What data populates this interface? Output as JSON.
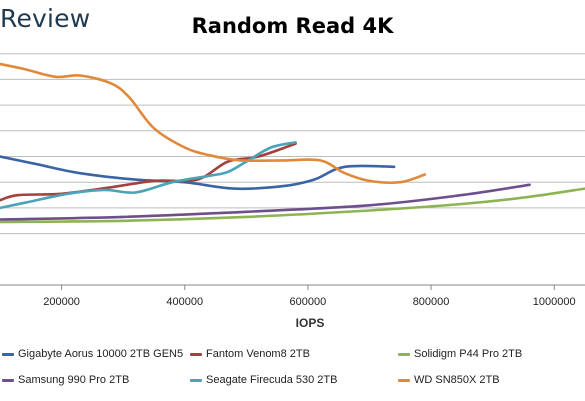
{
  "header": {
    "brand": "Review"
  },
  "chart_data": {
    "type": "line",
    "title": "Random Read 4K",
    "xlabel": "IOPS",
    "ylabel": "",
    "xlim": [
      100000,
      1050000
    ],
    "ylim": [
      0,
      10
    ],
    "x_ticks": [
      200000,
      400000,
      600000,
      800000,
      1000000
    ],
    "y_gridlines": [
      2,
      3,
      4,
      5,
      6,
      7,
      8,
      9
    ],
    "y_tick_labels_visible": false,
    "grid": true,
    "legend_position": "bottom",
    "series": [
      {
        "name": "Gigabyte Aorus 10000 2TB GEN5",
        "color": "#3a64a3",
        "points": [
          [
            100000,
            5.0
          ],
          [
            160000,
            4.7
          ],
          [
            230000,
            4.35
          ],
          [
            320000,
            4.1
          ],
          [
            400000,
            4.0
          ],
          [
            480000,
            3.75
          ],
          [
            560000,
            3.85
          ],
          [
            610000,
            4.1
          ],
          [
            660000,
            4.6
          ],
          [
            740000,
            4.6
          ]
        ]
      },
      {
        "name": "Fantom Venom8 2TB",
        "color": "#a3413f",
        "points": [
          [
            100000,
            3.3
          ],
          [
            130000,
            3.5
          ],
          [
            200000,
            3.55
          ],
          [
            280000,
            3.8
          ],
          [
            350000,
            4.05
          ],
          [
            420000,
            4.1
          ],
          [
            470000,
            4.8
          ],
          [
            520000,
            5.0
          ],
          [
            580000,
            5.5
          ]
        ]
      },
      {
        "name": "Solidigm P44 Pro 2TB",
        "color": "#8db454",
        "points": [
          [
            100000,
            2.45
          ],
          [
            300000,
            2.5
          ],
          [
            500000,
            2.65
          ],
          [
            700000,
            2.9
          ],
          [
            850000,
            3.15
          ],
          [
            950000,
            3.4
          ],
          [
            1050000,
            3.75
          ]
        ]
      },
      {
        "name": "Samsung 990 Pro 2TB",
        "color": "#6e4f8e",
        "points": [
          [
            100000,
            2.55
          ],
          [
            300000,
            2.65
          ],
          [
            500000,
            2.85
          ],
          [
            700000,
            3.1
          ],
          [
            850000,
            3.5
          ],
          [
            960000,
            3.9
          ]
        ]
      },
      {
        "name": "Seagate Firecuda 530 2TB",
        "color": "#4aa3b6",
        "points": [
          [
            100000,
            3.0
          ],
          [
            150000,
            3.25
          ],
          [
            210000,
            3.55
          ],
          [
            270000,
            3.7
          ],
          [
            320000,
            3.6
          ],
          [
            380000,
            4.0
          ],
          [
            440000,
            4.25
          ],
          [
            470000,
            4.4
          ],
          [
            500000,
            4.8
          ],
          [
            540000,
            5.35
          ],
          [
            580000,
            5.55
          ]
        ]
      },
      {
        "name": "WD SN850X 2TB",
        "color": "#e0893a",
        "points": [
          [
            100000,
            8.6
          ],
          [
            140000,
            8.4
          ],
          [
            190000,
            8.1
          ],
          [
            230000,
            8.15
          ],
          [
            280000,
            7.85
          ],
          [
            310000,
            7.3
          ],
          [
            350000,
            6.1
          ],
          [
            400000,
            5.35
          ],
          [
            440000,
            5.05
          ],
          [
            490000,
            4.85
          ],
          [
            560000,
            4.85
          ],
          [
            620000,
            4.85
          ],
          [
            660000,
            4.35
          ],
          [
            700000,
            4.05
          ],
          [
            750000,
            4.0
          ],
          [
            790000,
            4.3
          ]
        ]
      }
    ]
  }
}
